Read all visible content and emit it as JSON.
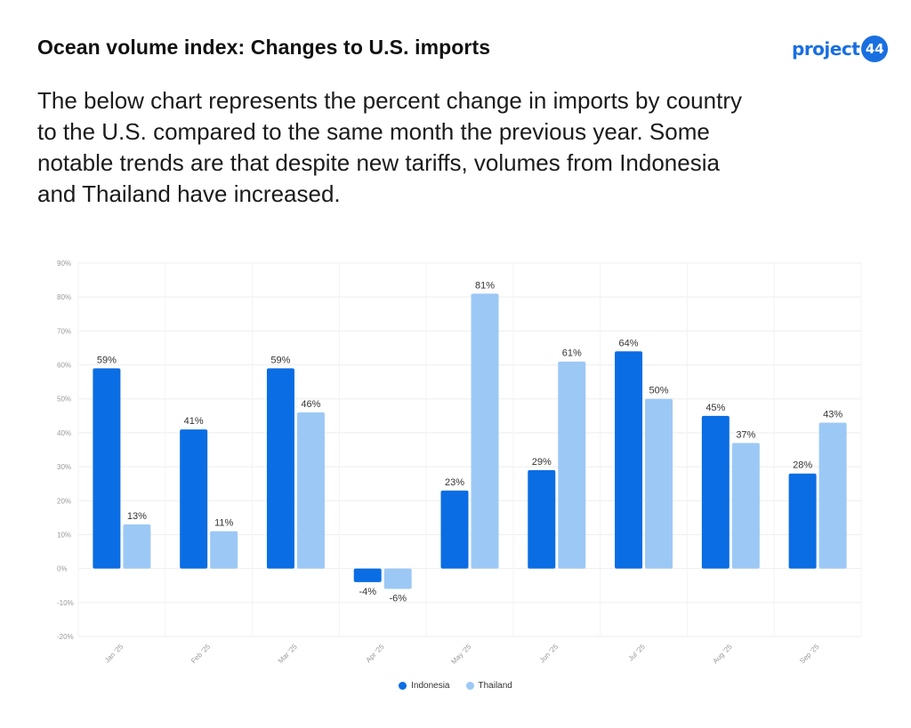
{
  "header": {
    "title": "Ocean volume index: Changes to U.S. imports",
    "logo_text": "project",
    "logo_badge": "44"
  },
  "description": "The below chart represents the percent change in imports by country to the U.S. compared to the same month the previous year. Some notable trends are that despite new tariffs, volumes from Indonesia and Thailand have increased.",
  "colors": {
    "indonesia": "#0a6de3",
    "thailand": "#9cc8f5",
    "brand": "#1a6fe0"
  },
  "chart_data": {
    "type": "bar",
    "title": "",
    "xlabel": "",
    "ylabel": "",
    "categories": [
      "Jan '25",
      "Feb '25",
      "Mar '25",
      "Apr '25",
      "May '25",
      "Jun '25",
      "Jul '25",
      "Aug '25",
      "Sep '25"
    ],
    "series": [
      {
        "name": "Indonesia",
        "values": [
          59,
          41,
          59,
          -4,
          23,
          29,
          64,
          45,
          28
        ],
        "labels": [
          "59%",
          "41%",
          "59%",
          "-4%",
          "23%",
          "29%",
          "64%",
          "45%",
          "28%"
        ]
      },
      {
        "name": "Thailand",
        "values": [
          13,
          11,
          46,
          -6,
          81,
          61,
          50,
          37,
          43
        ],
        "labels": [
          "13%",
          "11%",
          "46%",
          "-6%",
          "81%",
          "61%",
          "50%",
          "37%",
          "43%"
        ]
      }
    ],
    "ylim": [
      -20,
      90
    ],
    "yticks": [
      90,
      80,
      70,
      60,
      50,
      40,
      30,
      20,
      10,
      0,
      -10,
      -20
    ],
    "ytick_labels": [
      "90%",
      "80%",
      "70%",
      "60%",
      "50%",
      "40%",
      "30%",
      "20%",
      "10%",
      "0%",
      "-10%",
      "-20%"
    ],
    "grid": true,
    "legend_position": "bottom-center"
  }
}
